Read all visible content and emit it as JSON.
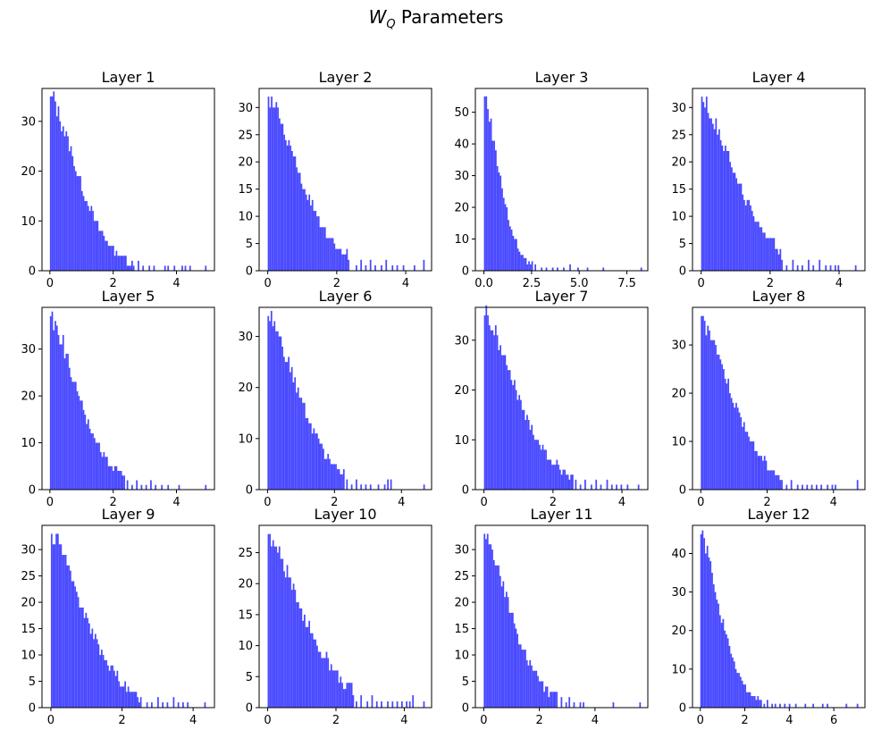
{
  "figure": {
    "title_main": "W",
    "title_sub": "Q",
    "title_rest": " Parameters",
    "bar_color": "#4949ff",
    "bins": 100
  },
  "chart_data": [
    {
      "type": "bar",
      "title": "Layer 1",
      "xlim": [
        -0.25,
        5.2
      ],
      "ylim": [
        0,
        36.6
      ],
      "xticks": [
        0,
        2,
        4
      ],
      "yticks": [
        0,
        10,
        20,
        30
      ],
      "xmax": 4.95,
      "peak": 35,
      "decay": 1.25,
      "shape": 0.92,
      "tail_start": 2.6,
      "tail": [
        [
          2.65,
          1
        ],
        [
          2.82,
          2
        ],
        [
          2.95,
          1
        ],
        [
          3.12,
          1
        ],
        [
          3.3,
          1
        ],
        [
          3.62,
          1
        ],
        [
          3.75,
          1
        ],
        [
          3.95,
          1
        ],
        [
          4.18,
          1
        ],
        [
          4.3,
          1
        ],
        [
          4.45,
          1
        ],
        [
          4.95,
          1
        ]
      ]
    },
    {
      "type": "bar",
      "title": "Layer 2",
      "xlim": [
        -0.25,
        4.75
      ],
      "ylim": [
        0,
        33.5
      ],
      "xticks": [
        0,
        2,
        4
      ],
      "yticks": [
        0,
        5,
        10,
        15,
        20,
        25,
        30
      ],
      "xmax": 4.55,
      "peak": 32,
      "decay": 1.3,
      "shape": 0.88,
      "tail_start": 2.3,
      "tail": [
        [
          2.35,
          2
        ],
        [
          2.55,
          1
        ],
        [
          2.7,
          2
        ],
        [
          2.85,
          1
        ],
        [
          3.0,
          2
        ],
        [
          3.1,
          1
        ],
        [
          3.3,
          1
        ],
        [
          3.45,
          2
        ],
        [
          3.6,
          1
        ],
        [
          3.75,
          1
        ],
        [
          3.95,
          1
        ],
        [
          4.25,
          1
        ],
        [
          4.55,
          2
        ]
      ]
    },
    {
      "type": "bar",
      "title": "Layer 3",
      "xlim": [
        -0.45,
        8.6
      ],
      "ylim": [
        0,
        57.5
      ],
      "xticks": [
        0.0,
        2.5,
        5.0,
        7.5
      ],
      "yticks": [
        0,
        10,
        20,
        30,
        40,
        50
      ],
      "xmax": 8.3,
      "peak": 55,
      "decay": 1.15,
      "shape": 0.95,
      "tail_start": 2.45,
      "tail": [
        [
          2.5,
          3
        ],
        [
          2.7,
          2
        ],
        [
          3.0,
          1
        ],
        [
          3.3,
          1
        ],
        [
          3.6,
          1
        ],
        [
          3.9,
          1
        ],
        [
          4.2,
          1
        ],
        [
          4.5,
          2
        ],
        [
          4.9,
          1
        ],
        [
          5.4,
          1
        ],
        [
          6.3,
          1
        ],
        [
          8.3,
          1
        ]
      ]
    },
    {
      "type": "bar",
      "title": "Layer 4",
      "xlim": [
        -0.25,
        4.75
      ],
      "ylim": [
        0,
        33.5
      ],
      "xticks": [
        0,
        2,
        4
      ],
      "yticks": [
        0,
        5,
        10,
        15,
        20,
        25,
        30
      ],
      "xmax": 4.55,
      "peak": 32,
      "decay": 1.4,
      "shape": 0.85,
      "tail_start": 2.3,
      "tail": [
        [
          2.35,
          2
        ],
        [
          2.5,
          1
        ],
        [
          2.65,
          2
        ],
        [
          2.8,
          1
        ],
        [
          2.95,
          1
        ],
        [
          3.1,
          2
        ],
        [
          3.25,
          1
        ],
        [
          3.45,
          2
        ],
        [
          3.6,
          1
        ],
        [
          3.75,
          1
        ],
        [
          3.9,
          1
        ],
        [
          4.0,
          1
        ],
        [
          4.5,
          1
        ]
      ]
    },
    {
      "type": "bar",
      "title": "Layer 5",
      "xlim": [
        -0.25,
        5.2
      ],
      "ylim": [
        0,
        38.9
      ],
      "xticks": [
        0,
        2,
        4
      ],
      "yticks": [
        0,
        10,
        20,
        30
      ],
      "xmax": 4.95,
      "peak": 37,
      "decay": 1.25,
      "shape": 0.92,
      "tail_start": 2.4,
      "tail": [
        [
          2.45,
          2
        ],
        [
          2.6,
          1
        ],
        [
          2.75,
          2
        ],
        [
          2.9,
          1
        ],
        [
          3.05,
          1
        ],
        [
          3.2,
          2
        ],
        [
          3.35,
          1
        ],
        [
          3.55,
          1
        ],
        [
          3.75,
          1
        ],
        [
          4.1,
          1
        ],
        [
          4.95,
          1
        ]
      ]
    },
    {
      "type": "bar",
      "title": "Layer 6",
      "xlim": [
        -0.25,
        4.9
      ],
      "ylim": [
        0,
        35.7
      ],
      "xticks": [
        0,
        2,
        4
      ],
      "yticks": [
        0,
        10,
        20,
        30
      ],
      "xmax": 4.7,
      "peak": 34,
      "decay": 1.3,
      "shape": 0.9,
      "tail_start": 2.3,
      "tail": [
        [
          2.35,
          2
        ],
        [
          2.5,
          1
        ],
        [
          2.65,
          2
        ],
        [
          2.8,
          1
        ],
        [
          2.95,
          1
        ],
        [
          3.1,
          1
        ],
        [
          3.3,
          1
        ],
        [
          3.5,
          1
        ],
        [
          3.6,
          2
        ],
        [
          3.7,
          2
        ],
        [
          4.7,
          1
        ]
      ]
    },
    {
      "type": "bar",
      "title": "Layer 7",
      "xlim": [
        -0.25,
        4.75
      ],
      "ylim": [
        0,
        36.6
      ],
      "xticks": [
        0,
        2,
        4
      ],
      "yticks": [
        0,
        10,
        20,
        30
      ],
      "xmax": 4.55,
      "peak": 35,
      "decay": 1.35,
      "shape": 0.88,
      "tail_start": 2.6,
      "tail": [
        [
          2.65,
          2
        ],
        [
          2.8,
          1
        ],
        [
          2.95,
          2
        ],
        [
          3.1,
          1
        ],
        [
          3.25,
          2
        ],
        [
          3.4,
          1
        ],
        [
          3.55,
          2
        ],
        [
          3.7,
          1
        ],
        [
          3.85,
          1
        ],
        [
          4.0,
          1
        ],
        [
          4.15,
          1
        ],
        [
          4.5,
          1
        ]
      ]
    },
    {
      "type": "bar",
      "title": "Layer 8",
      "xlim": [
        -0.25,
        4.95
      ],
      "ylim": [
        0,
        37.8
      ],
      "xticks": [
        0,
        2,
        4
      ],
      "yticks": [
        0,
        10,
        20,
        30
      ],
      "xmax": 4.75,
      "peak": 36,
      "decay": 1.3,
      "shape": 0.9,
      "tail_start": 2.4,
      "tail": [
        [
          2.45,
          2
        ],
        [
          2.6,
          1
        ],
        [
          2.75,
          2
        ],
        [
          2.9,
          1
        ],
        [
          3.05,
          1
        ],
        [
          3.2,
          1
        ],
        [
          3.35,
          1
        ],
        [
          3.5,
          1
        ],
        [
          3.65,
          1
        ],
        [
          3.8,
          1
        ],
        [
          3.95,
          1
        ],
        [
          4.05,
          1
        ],
        [
          4.75,
          2
        ]
      ]
    },
    {
      "type": "bar",
      "title": "Layer 9",
      "xlim": [
        -0.25,
        4.6
      ],
      "ylim": [
        0,
        34.6
      ],
      "xticks": [
        0,
        2,
        4
      ],
      "yticks": [
        0,
        5,
        10,
        15,
        20,
        25,
        30
      ],
      "xmax": 4.4,
      "peak": 33,
      "decay": 1.3,
      "shape": 0.85,
      "tail_start": 2.5,
      "tail": [
        [
          2.55,
          2
        ],
        [
          2.7,
          1
        ],
        [
          2.85,
          1
        ],
        [
          3.0,
          2
        ],
        [
          3.15,
          1
        ],
        [
          3.3,
          1
        ],
        [
          3.45,
          2
        ],
        [
          3.6,
          1
        ],
        [
          3.7,
          1
        ],
        [
          3.85,
          1
        ],
        [
          4.35,
          1
        ]
      ]
    },
    {
      "type": "bar",
      "title": "Layer 10",
      "xlim": [
        -0.25,
        4.8
      ],
      "ylim": [
        0,
        29.4
      ],
      "xticks": [
        0,
        2,
        4
      ],
      "yticks": [
        0,
        5,
        10,
        15,
        20,
        25
      ],
      "xmax": 4.6,
      "peak": 28,
      "decay": 1.45,
      "shape": 0.82,
      "tail_start": 2.55,
      "tail": [
        [
          2.6,
          1
        ],
        [
          2.75,
          2
        ],
        [
          2.9,
          1
        ],
        [
          3.05,
          2
        ],
        [
          3.2,
          1
        ],
        [
          3.35,
          1
        ],
        [
          3.5,
          1
        ],
        [
          3.65,
          1
        ],
        [
          3.8,
          1
        ],
        [
          3.95,
          1
        ],
        [
          4.05,
          1
        ],
        [
          4.15,
          1
        ],
        [
          4.25,
          2
        ],
        [
          4.6,
          1
        ]
      ]
    },
    {
      "type": "bar",
      "title": "Layer 11",
      "xlim": [
        -0.3,
        5.9
      ],
      "ylim": [
        0,
        34.6
      ],
      "xticks": [
        0,
        2,
        4
      ],
      "yticks": [
        0,
        5,
        10,
        15,
        20,
        25,
        30
      ],
      "xmax": 5.65,
      "peak": 33,
      "decay": 1.35,
      "shape": 0.9,
      "tail_start": 2.6,
      "tail": [
        [
          2.65,
          3
        ],
        [
          2.8,
          2
        ],
        [
          2.95,
          1
        ],
        [
          3.1,
          2
        ],
        [
          3.25,
          1
        ],
        [
          3.45,
          1
        ],
        [
          3.6,
          1
        ],
        [
          4.65,
          1
        ],
        [
          5.65,
          1
        ]
      ]
    },
    {
      "type": "bar",
      "title": "Layer 12",
      "xlim": [
        -0.35,
        7.4
      ],
      "ylim": [
        0,
        47.3
      ],
      "xticks": [
        0,
        2,
        4,
        6
      ],
      "yticks": [
        0,
        10,
        20,
        30,
        40
      ],
      "xmax": 7.1,
      "peak": 45,
      "decay": 1.25,
      "shape": 0.92,
      "tail_start": 2.7,
      "tail": [
        [
          2.75,
          2
        ],
        [
          2.9,
          1
        ],
        [
          3.05,
          2
        ],
        [
          3.2,
          1
        ],
        [
          3.4,
          1
        ],
        [
          3.6,
          1
        ],
        [
          3.8,
          1
        ],
        [
          4.0,
          1
        ],
        [
          4.3,
          1
        ],
        [
          4.75,
          1
        ],
        [
          5.1,
          1
        ],
        [
          5.5,
          1
        ],
        [
          5.75,
          1
        ],
        [
          6.6,
          1
        ],
        [
          7.05,
          1
        ]
      ]
    }
  ]
}
